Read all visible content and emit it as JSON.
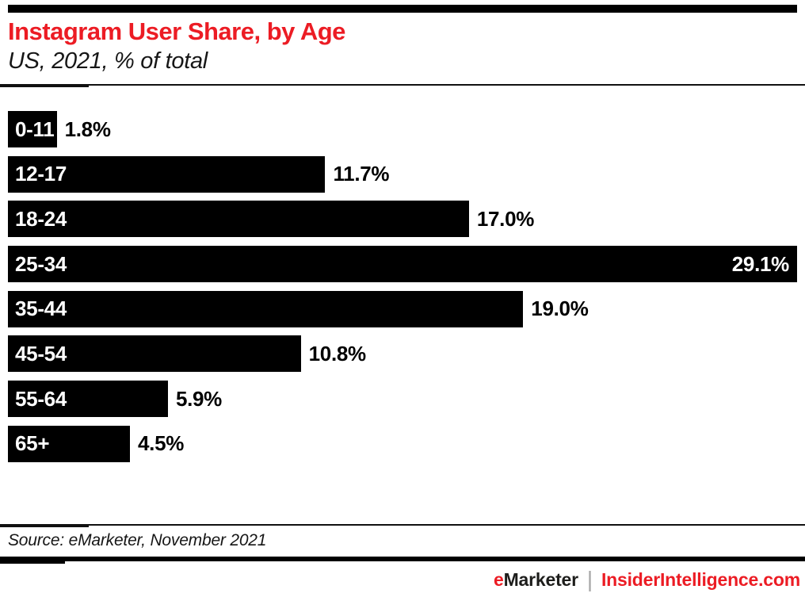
{
  "chart_data": {
    "type": "bar",
    "orientation": "horizontal",
    "title": "Instagram User Share, by Age",
    "subtitle": "US, 2021, % of total",
    "categories": [
      "0-11",
      "12-17",
      "18-24",
      "25-34",
      "35-44",
      "45-54",
      "55-64",
      "65+"
    ],
    "values": [
      1.8,
      11.7,
      17.0,
      29.1,
      19.0,
      10.8,
      5.9,
      4.5
    ],
    "value_labels": [
      "1.8%",
      "11.7%",
      "17.0%",
      "29.1%",
      "19.0%",
      "10.8%",
      "5.9%",
      "4.5%"
    ],
    "value_label_position": [
      "outside",
      "outside",
      "outside",
      "inside",
      "outside",
      "outside",
      "outside",
      "outside"
    ],
    "xlim": [
      0,
      29.1
    ],
    "bar_color": "#000000",
    "category_label_color": "#ffffff",
    "grid": false,
    "legend": false
  },
  "footer": {
    "source": "Source: eMarketer, November 2021",
    "brand_first_letter": "e",
    "brand_rest": "Marketer",
    "divider": "|",
    "site": "InsiderIntelligence.com"
  },
  "colors": {
    "accent_red": "#EC1C24",
    "bar_black": "#000000",
    "divider_gray": "#A7A7A7",
    "text_dark": "#161616"
  }
}
